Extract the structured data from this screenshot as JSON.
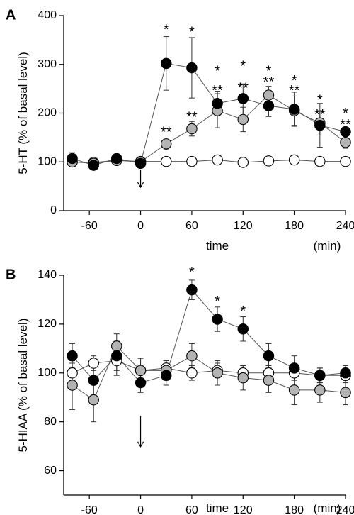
{
  "chart_data": [
    {
      "type": "line",
      "panel_label": "A",
      "ylabel": "5-HT (% of basal level)",
      "xlabel": "time",
      "x_unit": "(min)",
      "xlim": [
        -90,
        240
      ],
      "ylim": [
        0,
        400
      ],
      "x_ticks": [
        -60,
        0,
        60,
        120,
        180,
        240
      ],
      "y_ticks": [
        0,
        100,
        200,
        300,
        400
      ],
      "marker_arrow_x": 0,
      "grid": false,
      "series": [
        {
          "color": "#000000",
          "x": [
            -80,
            -55,
            -28,
            0,
            30,
            60,
            90,
            120,
            150,
            180,
            210,
            240
          ],
          "y": [
            107,
            93,
            107,
            97,
            302,
            293,
            220,
            230,
            215,
            208,
            175,
            162
          ],
          "err": [
            12,
            8,
            6,
            4,
            55,
            62,
            25,
            30,
            22,
            35,
            45,
            8
          ]
        },
        {
          "color": "#b3b3b3",
          "x": [
            -80,
            -55,
            -28,
            0,
            30,
            60,
            90,
            120,
            150,
            180,
            210,
            240
          ],
          "y": [
            100,
            97,
            103,
            100,
            137,
            168,
            205,
            187,
            237,
            205,
            180,
            140
          ],
          "err": [
            7,
            6,
            5,
            6,
            12,
            15,
            35,
            25,
            18,
            30,
            25,
            12
          ]
        },
        {
          "color": "#ffffff",
          "x": [
            -80,
            -55,
            -28,
            0,
            30,
            60,
            90,
            120,
            150,
            180,
            210,
            240
          ],
          "y": [
            100,
            99,
            103,
            101,
            101,
            101,
            104,
            99,
            102,
            104,
            101,
            101
          ],
          "err": [
            5,
            5,
            4,
            4,
            3,
            3,
            4,
            3,
            3,
            3,
            3,
            3
          ]
        }
      ],
      "annotations": [
        {
          "x": 30,
          "y": 370,
          "text": "*"
        },
        {
          "x": 60,
          "y": 365,
          "text": "*"
        },
        {
          "x": 90,
          "y": 285,
          "text": "*"
        },
        {
          "x": 120,
          "y": 295,
          "text": "*"
        },
        {
          "x": 150,
          "y": 285,
          "text": "*"
        },
        {
          "x": 180,
          "y": 265,
          "text": "*"
        },
        {
          "x": 210,
          "y": 225,
          "text": "*"
        },
        {
          "x": 240,
          "y": 198,
          "text": "*"
        },
        {
          "x": 30,
          "y": 160,
          "text": "**"
        },
        {
          "x": 60,
          "y": 190,
          "text": "**"
        },
        {
          "x": 90,
          "y": 245,
          "text": "**"
        },
        {
          "x": 120,
          "y": 250,
          "text": "**"
        },
        {
          "x": 150,
          "y": 262,
          "text": "**"
        },
        {
          "x": 180,
          "y": 245,
          "text": "**"
        },
        {
          "x": 210,
          "y": 195,
          "text": "**"
        },
        {
          "x": 240,
          "y": 175,
          "text": "**"
        }
      ]
    },
    {
      "type": "line",
      "panel_label": "B",
      "ylabel": "5-HIAA (% of basal level)",
      "xlabel": "time",
      "x_unit": "(min)",
      "xlim": [
        -90,
        240
      ],
      "ylim": [
        50,
        140
      ],
      "x_ticks": [
        -60,
        0,
        60,
        120,
        180,
        240
      ],
      "y_ticks": [
        60,
        80,
        100,
        120,
        140
      ],
      "marker_arrow_x": 0,
      "grid": false,
      "series": [
        {
          "color": "#000000",
          "x": [
            -80,
            -55,
            -28,
            0,
            30,
            60,
            90,
            120,
            150,
            180,
            210,
            240
          ],
          "y": [
            107,
            97,
            107,
            96,
            99,
            134,
            122,
            118,
            107,
            102,
            99,
            100
          ],
          "err": [
            5,
            6,
            6,
            4,
            4,
            4,
            5,
            5,
            5,
            5,
            3,
            3
          ]
        },
        {
          "color": "#b3b3b3",
          "x": [
            -80,
            -55,
            -28,
            0,
            30,
            60,
            90,
            120,
            150,
            180,
            210,
            240
          ],
          "y": [
            95,
            89,
            111,
            101,
            101,
            107,
            100,
            98,
            97,
            93,
            93,
            92
          ],
          "err": [
            10,
            9,
            5,
            5,
            4,
            5,
            5,
            5,
            5,
            6,
            5,
            5
          ]
        },
        {
          "color": "#ffffff",
          "x": [
            -80,
            -55,
            -28,
            0,
            30,
            60,
            90,
            120,
            150,
            180,
            210,
            240
          ],
          "y": [
            100,
            104,
            105,
            101,
            102,
            100,
            101,
            100,
            100,
            100,
            99,
            99
          ],
          "err": [
            4,
            3,
            6,
            5,
            3,
            3,
            3,
            3,
            3,
            3,
            3,
            3
          ]
        }
      ],
      "annotations": [
        {
          "x": 60,
          "y": 141,
          "text": "*"
        },
        {
          "x": 90,
          "y": 129,
          "text": "*"
        },
        {
          "x": 120,
          "y": 125,
          "text": "*"
        }
      ]
    }
  ]
}
